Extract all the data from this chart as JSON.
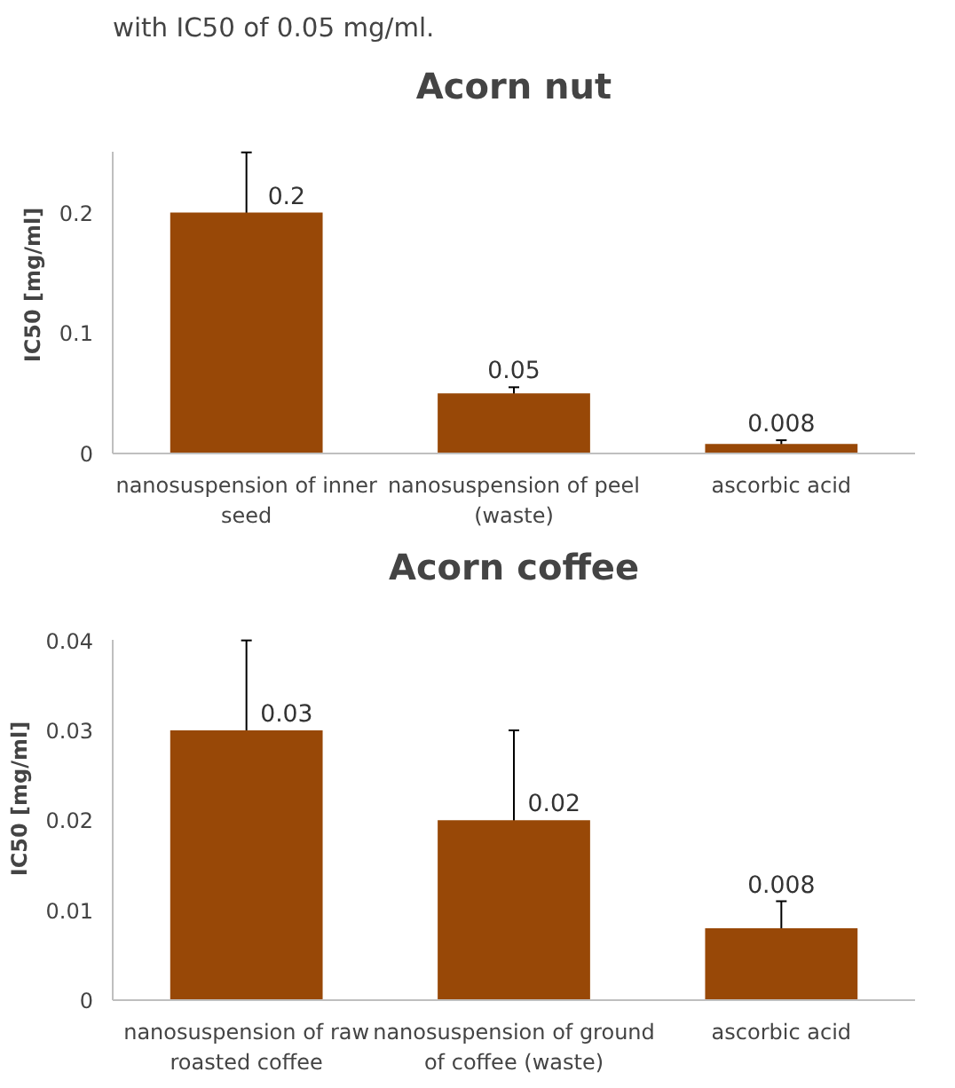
{
  "chart_data": [
    {
      "type": "bar",
      "title": "Acorn nut",
      "ylabel": "IC50 [mg/ml]",
      "annotations": [
        "with IC50 of 0.05 mg/ml."
      ],
      "categories": [
        "nanosuspension of inner seed",
        "nanosuspension of peel (waste)",
        "ascorbic acid"
      ],
      "values": [
        0.2,
        0.05,
        0.008
      ],
      "color": "#984807",
      "errors": [
        0.05,
        0.005,
        0.003
      ],
      "ylim": [
        0,
        0.25
      ],
      "yticks": [
        0,
        0.1,
        0.2
      ],
      "grid": false,
      "data_labels": true
    },
    {
      "type": "bar",
      "title": "Acorn coffee",
      "ylabel": "IC50 [mg/ml]",
      "categories": [
        "nanosuspension of raw roasted coffee",
        "nanosuspension of ground of coffee (waste)",
        "ascorbic acid"
      ],
      "values": [
        0.03,
        0.02,
        0.008
      ],
      "color": "#984807",
      "errors": [
        0.01,
        0.01,
        0.003
      ],
      "ylim": [
        0,
        0.04
      ],
      "yticks": [
        0,
        0.01,
        0.02,
        0.03,
        0.04
      ],
      "grid": false,
      "data_labels": true
    }
  ]
}
